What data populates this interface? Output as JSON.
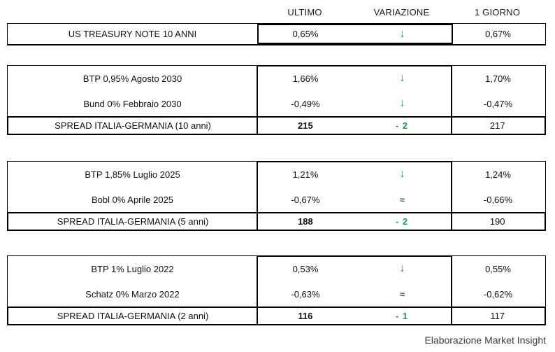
{
  "header": {
    "columns": [
      "ULTIMO",
      "VARIAZIONE",
      "1 GIORNO"
    ]
  },
  "colors": {
    "variation_down_green": "#189b54",
    "variation_flat_blue": "#2a5f7f",
    "border_black": "#000000"
  },
  "blocks": [
    {
      "rows": [
        {
          "label": "US TREASURY NOTE 10 ANNI",
          "ultimo": "0,65%",
          "variazione": {
            "symbol": "↓",
            "direction": "down"
          },
          "giorno": "0,67%"
        }
      ]
    },
    {
      "rows": [
        {
          "label": "BTP 0,95% Agosto 2030",
          "ultimo": "1,66%",
          "variazione": {
            "symbol": "↓",
            "direction": "down"
          },
          "giorno": "1,70%"
        },
        {
          "label": "Bund 0% Febbraio 2030",
          "ultimo": "-0,49%",
          "variazione": {
            "symbol": "↓",
            "direction": "down"
          },
          "giorno": "-0,47%"
        }
      ],
      "spread": {
        "label": "SPREAD ITALIA-GERMANIA (10 anni)",
        "ultimo": "215",
        "variazione": {
          "symbol": "- 2",
          "direction": "spread"
        },
        "giorno": "217"
      }
    },
    {
      "rows": [
        {
          "label": "BTP 1,85% Luglio 2025",
          "ultimo": "1,21%",
          "variazione": {
            "symbol": "↓",
            "direction": "down"
          },
          "giorno": "1,24%"
        },
        {
          "label": "Bobl 0% Aprile 2025",
          "ultimo": "-0,67%",
          "variazione": {
            "symbol": "≈",
            "direction": "flat"
          },
          "giorno": "-0,66%"
        }
      ],
      "spread": {
        "label": "SPREAD ITALIA-GERMANIA (5 anni)",
        "ultimo": "188",
        "variazione": {
          "symbol": "- 2",
          "direction": "spread"
        },
        "giorno": "190"
      }
    },
    {
      "rows": [
        {
          "label": "BTP 1% Luglio 2022",
          "ultimo": "0,53%",
          "variazione": {
            "symbol": "↓",
            "direction": "down"
          },
          "giorno": "0,55%"
        },
        {
          "label": "Schatz 0% Marzo 2022",
          "ultimo": "-0,63%",
          "variazione": {
            "symbol": "≈",
            "direction": "flat"
          },
          "giorno": "-0,62%"
        }
      ],
      "spread": {
        "label": "SPREAD ITALIA-GERMANIA (2 anni)",
        "ultimo": "116",
        "variazione": {
          "symbol": "- 1",
          "direction": "spread"
        },
        "giorno": "117"
      }
    }
  ],
  "footer": {
    "credit": "Elaborazione Market Insight"
  }
}
